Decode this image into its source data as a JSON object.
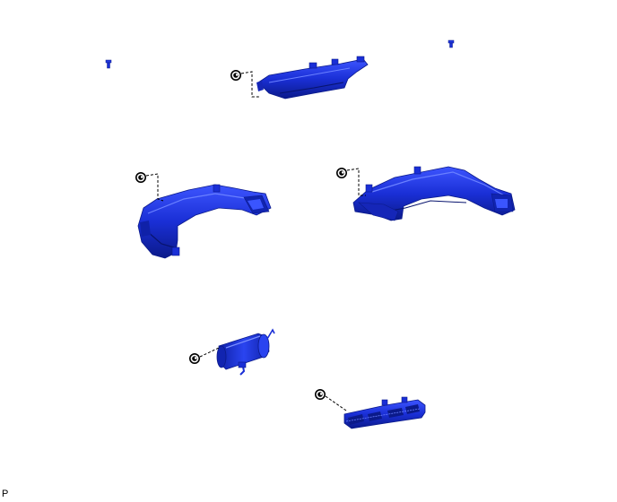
{
  "figure": {
    "corner_label": "P"
  },
  "colors": {
    "part_fill": "#1a2fd6",
    "part_dark": "#0b1a8a",
    "part_light": "#4a63ff",
    "line": "#000000",
    "background": "#ffffff"
  },
  "parts": [
    {
      "name": "clip-left",
      "kind": "clip"
    },
    {
      "name": "clip-right",
      "kind": "clip"
    },
    {
      "name": "upper-center-duct",
      "kind": "duct"
    },
    {
      "name": "left-side-duct",
      "kind": "duct"
    },
    {
      "name": "right-side-duct",
      "kind": "duct"
    },
    {
      "name": "center-cylinder-duct",
      "kind": "duct"
    },
    {
      "name": "lower-register-duct",
      "kind": "duct"
    }
  ],
  "fasteners": [
    {
      "name": "screw-upper-center",
      "icon": "screw-icon"
    },
    {
      "name": "screw-left-duct",
      "icon": "screw-icon"
    },
    {
      "name": "screw-right-duct",
      "icon": "screw-icon"
    },
    {
      "name": "screw-cylinder-duct",
      "icon": "screw-icon"
    },
    {
      "name": "screw-lower-register",
      "icon": "screw-icon"
    }
  ]
}
